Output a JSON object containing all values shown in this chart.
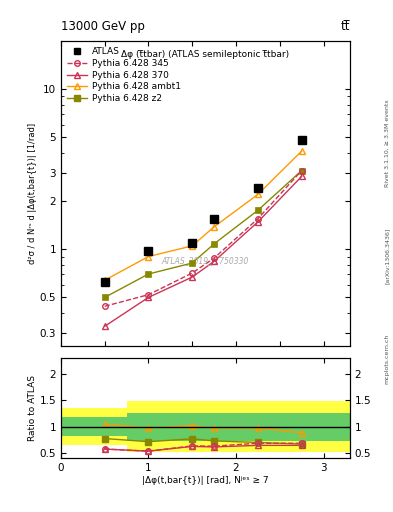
{
  "title_left": "13000 GeV pp",
  "title_right": "tt̅",
  "main_title": "Δφ (t̅tbar) (ATLAS semileptonic t̅tbar)",
  "watermark": "ATLAS_2019_I1750330",
  "rivet_label": "Rivet 3.1.10, ≥ 3.3M events",
  "arxiv_label": "[arXiv:1306.3436]",
  "mcplots_label": "mcplots.cern.ch",
  "ylabel_main": "d²σ / d Nʳˢ d |Δφ(t,bar{t})| [1/rad]",
  "ylabel_ratio": "Ratio to ATLAS",
  "xlabel": "|Δφ(t,bar{t})| [rad], Nʲᵉˢ ≥ 7",
  "xlim": [
    0,
    3.3
  ],
  "ylim_main": [
    0.25,
    20
  ],
  "ylim_ratio": [
    0.4,
    2.3
  ],
  "x_data": [
    0.5,
    1.0,
    1.5,
    1.75,
    2.25,
    2.75
  ],
  "atlas_y": [
    0.62,
    0.97,
    1.1,
    1.55,
    2.4,
    4.8
  ],
  "p345_y": [
    0.44,
    0.52,
    0.71,
    0.88,
    1.55,
    3.1
  ],
  "p370_y": [
    0.33,
    0.5,
    0.67,
    0.84,
    1.48,
    2.85
  ],
  "pambt1_y": [
    0.64,
    0.9,
    1.05,
    1.38,
    2.2,
    4.1
  ],
  "pz2_y": [
    0.5,
    0.7,
    0.82,
    1.08,
    1.75,
    3.1
  ],
  "ratio_p345": [
    0.575,
    0.535,
    0.635,
    0.63,
    0.685,
    0.685
  ],
  "ratio_p370": [
    0.575,
    0.535,
    0.625,
    0.615,
    0.645,
    0.645
  ],
  "ratio_pambt1": [
    1.05,
    0.975,
    1.02,
    0.975,
    0.975,
    0.885
  ],
  "ratio_pz2": [
    0.775,
    0.715,
    0.77,
    0.73,
    0.7,
    0.67
  ],
  "band_x": [
    0.0,
    0.75,
    1.25,
    1.625,
    2.0,
    2.5,
    3.0,
    3.3
  ],
  "green_band_low": [
    0.82,
    0.73,
    0.73,
    0.73,
    0.73,
    0.73,
    0.73
  ],
  "green_band_high": [
    1.18,
    1.27,
    1.27,
    1.27,
    1.27,
    1.27,
    1.27
  ],
  "yellow_band_low": [
    0.65,
    0.52,
    0.52,
    0.52,
    0.52,
    0.52,
    0.52
  ],
  "yellow_band_high": [
    1.35,
    1.48,
    1.48,
    1.48,
    1.48,
    1.48,
    1.48
  ],
  "color_atlas": "#000000",
  "color_p345": "#cc3355",
  "color_p370": "#cc3355",
  "color_pambt1": "#ff9900",
  "color_pz2": "#888800",
  "green_color": "#66cc66",
  "yellow_color": "#ffff44"
}
